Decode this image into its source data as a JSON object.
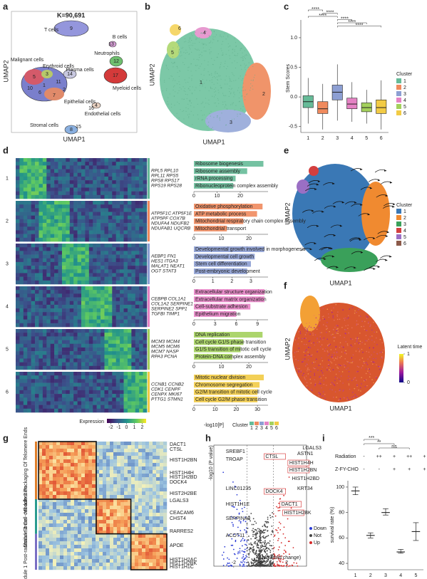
{
  "panel_labels": [
    "a",
    "b",
    "c",
    "d",
    "e",
    "f",
    "g",
    "h",
    "i"
  ],
  "umap_a": {
    "title": "K=90,691",
    "xlabel": "UMAP1",
    "ylabel": "UMAP2",
    "cell_types": [
      "T cells",
      "B cells",
      "Malignant cells",
      "Erythroid cells",
      "Plasma cells",
      "Neutrophils",
      "Myeloid cells",
      "Epithelial cells",
      "Endothelial cells",
      "Stromal cells"
    ],
    "cluster_ids": [
      "9",
      "13",
      "5",
      "3",
      "14",
      "11",
      "1",
      "10",
      "7",
      "2",
      "6",
      "12",
      "17",
      "4",
      "16",
      "8",
      "15"
    ]
  },
  "umap_b": {
    "xlabel": "UMAP1",
    "ylabel": "UMAP2",
    "clusters": [
      "1",
      "2",
      "3",
      "4",
      "5",
      "6"
    ]
  },
  "chart_data": [
    {
      "type": "box",
      "ylabel": "Stem Scores",
      "legend_title": "Cluster",
      "categories": [
        "1",
        "2",
        "3",
        "4",
        "5",
        "6"
      ],
      "colors": [
        "#66bb98",
        "#f08a5d",
        "#8d9fd3",
        "#e582c4",
        "#a3d05c",
        "#f2cb45"
      ],
      "whisker_low": [
        -0.45,
        -0.55,
        -0.4,
        -0.42,
        -0.45,
        -0.55
      ],
      "q1": [
        -0.18,
        -0.28,
        -0.05,
        -0.2,
        -0.25,
        -0.28
      ],
      "median": [
        -0.08,
        -0.2,
        0.08,
        -0.12,
        -0.18,
        -0.18
      ],
      "q3": [
        0.02,
        -0.08,
        0.2,
        -0.02,
        -0.1,
        -0.05
      ],
      "whisker_high": [
        0.32,
        0.22,
        0.55,
        0.25,
        0.12,
        0.28
      ],
      "ylim": [
        -0.6,
        1.3
      ],
      "yticks": [
        {
          "value": -0.5,
          "label": "-0.5"
        },
        {
          "value": 0,
          "label": "0.0"
        },
        0.5,
        {
          "value": 1,
          "label": "1.0"
        }
      ],
      "comparisons": [
        {
          "pair": [
            0,
            1
          ],
          "label": "****"
        },
        {
          "pair": [
            1,
            2
          ],
          "label": "****"
        },
        {
          "pair": [
            0,
            2
          ],
          "label": "****"
        },
        {
          "pair": [
            2,
            3
          ],
          "label": "****"
        },
        {
          "pair": [
            2,
            4
          ],
          "label": "****"
        },
        {
          "pair": [
            2,
            5
          ],
          "label": "****"
        }
      ]
    },
    {
      "type": "bar",
      "orientation": "horizontal",
      "xlabel": "-log10[P]",
      "legend_title": "Cluster",
      "expression_label": "Expression",
      "expression_lim": [
        -2.5,
        2.5
      ],
      "expression_ticks": [
        -2,
        -1,
        0,
        1,
        2
      ],
      "modules": [
        {
          "name": "1",
          "color": "#66bb98",
          "genes": [
            "RPL5 RPL10",
            "RPL11 RPS5",
            "RPS8 RPS17",
            "RPS19 RPS28"
          ],
          "terms": [
            "Ribosome biogenesis",
            "Ribosome assembly",
            "rRNA processing",
            "Ribonucleoprotein complex assembly"
          ],
          "values": [
            30,
            23,
            18,
            17
          ],
          "xlim": [
            0,
            32
          ],
          "xticks": [
            0,
            10,
            20
          ]
        },
        {
          "name": "2",
          "color": "#f08a5d",
          "genes": [
            "ATP5F1C ATP5F1E",
            "ATP5PF COX7B",
            "NDUFA4 NDUFB2",
            "NDUFAB1 UQCRB"
          ],
          "terms": [
            "Oxidative phosphorylation",
            "ATP metabolic process",
            "Mitochondrial respiratory chain complex assembly",
            "Mitochondrial transport"
          ],
          "values": [
            25,
            23,
            18,
            12
          ],
          "xlim": [
            0,
            27
          ],
          "xticks": [
            0,
            10,
            20
          ]
        },
        {
          "name": "3",
          "color": "#8d9fd3",
          "genes": [
            "AEBP1 FN1",
            "HES1 ITGA3",
            "MALAT1 NEAT1",
            "OGT STAT3"
          ],
          "terms": [
            "Developmental growth involved in morphogenesis",
            "Developmental cell growth",
            "Stem cell differentiation",
            "Post-embryonic development"
          ],
          "values": [
            3.7,
            3.2,
            3.0,
            2.8
          ],
          "xlim": [
            0,
            3.9
          ],
          "xticks": [
            0,
            1,
            2,
            3
          ]
        },
        {
          "name": "4",
          "color": "#e582c4",
          "genes": [
            "CEBPB COL1A1",
            "COL1A2 SERPINE1",
            "SERPINE2 SPP1",
            "TGFBI TIMP1"
          ],
          "terms": [
            "Extracellular structure organization",
            "Extracellular matrix organization",
            "Cell-substrate adhesion",
            "Epithelium migration"
          ],
          "values": [
            10,
            10,
            8,
            6
          ],
          "xlim": [
            0,
            10.5
          ],
          "xticks": [
            0,
            3,
            6,
            9
          ]
        },
        {
          "name": "5",
          "color": "#a3d05c",
          "genes": [
            "MCM3 MCM4",
            "MCM5 MCM6",
            "MCM7 NASP",
            "RPA3 PCNA"
          ],
          "terms": [
            "DNA replication",
            "Cell cycle G1/S phase transition",
            "G1/S transition of mitotic cell cycle",
            "Protein-DNA complex assembly"
          ],
          "values": [
            25,
            18,
            17,
            14
          ],
          "xlim": [
            0,
            27
          ],
          "xticks": [
            0,
            10,
            20
          ]
        },
        {
          "name": "6",
          "color": "#f2cb45",
          "genes": [
            "CCNB1 CCNB2",
            "CDK1 CENPF",
            "CENPX MKI67",
            "PTTG1 STMN1"
          ],
          "terms": [
            "Mitotic nuclear division",
            "Chromosome segregation",
            "G2/M transition of mitotic cell cycle",
            "Cell cycle G2/M phase transition"
          ],
          "values": [
            33,
            31,
            30,
            30
          ],
          "xlim": [
            0,
            35
          ],
          "xticks": [
            0,
            10,
            20,
            30
          ]
        }
      ]
    },
    {
      "type": "errorbar",
      "ylabel": "survival rate (%)",
      "categories": [
        "1",
        "2",
        "3",
        "4",
        "5"
      ],
      "conditions": [
        {
          "name": "Radiation",
          "values": [
            "-",
            "++",
            "+",
            "++",
            "+"
          ]
        },
        {
          "name": "Z-FY-CHO",
          "values": [
            "-",
            "-",
            "+",
            "+",
            "+"
          ]
        }
      ],
      "low": [
        94,
        60,
        78,
        48,
        58
      ],
      "median": [
        97,
        62,
        80,
        49,
        65
      ],
      "high": [
        100,
        64,
        83,
        51,
        72
      ],
      "ylim": [
        35,
        105
      ],
      "yticks": [
        40,
        60,
        80,
        100
      ],
      "comparisons": [
        {
          "pair": [
            0,
            1
          ],
          "label": "***"
        },
        {
          "pair": [
            0,
            2
          ],
          "label": "**"
        },
        {
          "pair": [
            1,
            3
          ],
          "label": "ns"
        }
      ]
    }
  ],
  "velocity_e": {
    "xlabel": "UMAP1",
    "ylabel": "UMAP2",
    "legend_title": "Cluster",
    "clusters": [
      "1",
      "2",
      "3",
      "4",
      "5",
      "6"
    ],
    "colors": [
      "#3a78b5",
      "#f08a30",
      "#3aa05a",
      "#d33f3f",
      "#9b6fc4",
      "#8c5a4a"
    ]
  },
  "latent_f": {
    "xlabel": "UMAP1",
    "ylabel": "UMAP2",
    "colorbar_title": "Latent time",
    "lim": [
      0,
      1
    ],
    "ticks": [
      0,
      1
    ]
  },
  "correlation_g": {
    "modules": [
      "Module 2 Packaging Of Telomere Ends",
      "Module 3 Cell-cell adhesion",
      "Module 1 Post-radiation Stress"
    ],
    "genes": [
      "DACT1",
      "CTSL",
      "HIST1H2BN",
      "HIST1H4H",
      "HIST1H2BD",
      "DOCK4",
      "HIST2H2BE",
      "LGALS3",
      "CEACAM6",
      "CHST4",
      "RARRES2",
      "APOE",
      "HIST1H2AC",
      "HIST1H2BK",
      "HIST1H1C"
    ]
  },
  "volcano_h": {
    "ylabel": "-log10 (P value)",
    "xlabel": "log2(fold change)",
    "xlim": [
      -3.5,
      3.5
    ],
    "xticks": [
      -2,
      0,
      2
    ],
    "legend": [
      {
        "name": "Down",
        "color": "#2a3bd6"
      },
      {
        "name": "Not",
        "color": "#444444"
      },
      {
        "name": "Up",
        "color": "#d62a2a"
      }
    ],
    "down_genes": [
      "SREBF1",
      "TROAP",
      "LINC01235",
      "HIST1H1E",
      "SERPINA3",
      "ACOT11"
    ],
    "up_genes": [
      "LGALS3",
      "ASTN1",
      "CTSL",
      "HIST1H4H",
      "HIST1H2BN",
      "HIST1H2BD",
      "KRT34",
      "DOCK4",
      "DACT1",
      "HIST1H2BK"
    ]
  }
}
